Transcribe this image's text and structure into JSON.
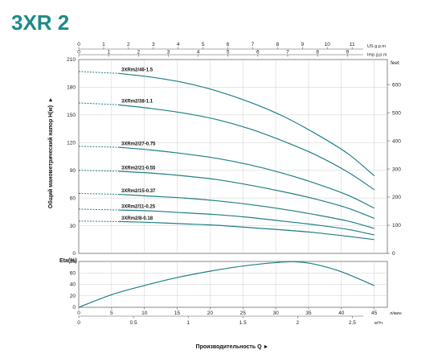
{
  "title": "3XR 2",
  "title_color": "#1f8a8a",
  "curve_color": "#1f7f86",
  "chart_data": {
    "type": "line",
    "head_panel": {
      "ylabel": "Общий манометрический напор H(м)",
      "ylim": [
        0,
        210
      ],
      "yticks": [
        0,
        30,
        60,
        90,
        120,
        150,
        180,
        210
      ],
      "xlim": [
        0,
        47
      ],
      "right_axis": {
        "label": "feet",
        "ticks": [
          0,
          100,
          200,
          300,
          400,
          500,
          600
        ]
      },
      "series": [
        {
          "name": "3XRm2/46-1.5",
          "dashed_to": 6,
          "x": [
            0,
            6,
            11,
            16,
            21,
            26,
            31,
            36,
            41,
            45
          ],
          "y": [
            197,
            195,
            191,
            185,
            176,
            164,
            149,
            130,
            108,
            84
          ]
        },
        {
          "name": "3XRm2/38-1.1",
          "dashed_to": 6,
          "x": [
            0,
            6,
            11,
            16,
            21,
            26,
            31,
            36,
            41,
            45
          ],
          "y": [
            163,
            161,
            157,
            152,
            145,
            135,
            122,
            107,
            88,
            69
          ]
        },
        {
          "name": "3XRm2/27-0.75",
          "dashed_to": 6,
          "x": [
            0,
            6,
            11,
            16,
            21,
            26,
            31,
            36,
            41,
            45
          ],
          "y": [
            116,
            115,
            112,
            108,
            103,
            96,
            87,
            76,
            63,
            49
          ]
        },
        {
          "name": "3XRm2/21-0.55",
          "dashed_to": 6,
          "x": [
            0,
            6,
            11,
            16,
            21,
            26,
            31,
            36,
            41,
            45
          ],
          "y": [
            90,
            89,
            87,
            84,
            80,
            74,
            67,
            59,
            49,
            38
          ]
        },
        {
          "name": "3XRm2/15-0.37",
          "dashed_to": 6,
          "x": [
            0,
            6,
            11,
            16,
            21,
            26,
            31,
            36,
            41,
            45
          ],
          "y": [
            65,
            64,
            62,
            60,
            57,
            53,
            48,
            42,
            35,
            27
          ]
        },
        {
          "name": "3XRm2/11-0.25",
          "dashed_to": 6,
          "x": [
            0,
            6,
            11,
            16,
            21,
            26,
            31,
            36,
            41,
            45
          ],
          "y": [
            48,
            47,
            46,
            44,
            42,
            39,
            35,
            31,
            26,
            20
          ]
        },
        {
          "name": "3XRm2/8-0.18",
          "dashed_to": 6,
          "x": [
            0,
            6,
            11,
            16,
            21,
            26,
            31,
            36,
            41,
            45
          ],
          "y": [
            35,
            34.5,
            33.5,
            32,
            30.5,
            28,
            25.5,
            22.5,
            18.5,
            15
          ]
        }
      ]
    },
    "eta_panel": {
      "ylabel": "Eta(%)",
      "ylim": [
        0,
        80
      ],
      "yticks": [
        0,
        20,
        40,
        60,
        80
      ],
      "x": [
        0,
        5,
        10,
        15,
        20,
        25,
        30,
        33,
        36,
        40,
        45
      ],
      "y": [
        0,
        22,
        38,
        52,
        63,
        72,
        78,
        79.5,
        75,
        62,
        38
      ]
    },
    "x_axis_lpm": {
      "unit": "л/мин",
      "ticks": [
        0,
        5,
        10,
        15,
        20,
        25,
        30,
        35,
        40,
        45
      ]
    },
    "x_axis_m3h": {
      "unit": "м³/ч",
      "ticks": [
        0,
        0.5,
        1,
        1.5,
        2,
        2.5
      ],
      "tick_labels": [
        "0",
        "0.5",
        "1",
        "1.5",
        "2",
        "2.5"
      ]
    },
    "x_axis_us_gpm": {
      "unit": "US g.p.m",
      "ticks": [
        0,
        1,
        2,
        3,
        4,
        5,
        6,
        7,
        8,
        9,
        10,
        11
      ]
    },
    "x_axis_imp_gpm": {
      "unit": "Imp.g.p.m",
      "ticks": [
        0,
        1,
        2,
        3,
        4,
        5,
        6,
        7,
        8,
        9
      ]
    },
    "xlabel": "Производительность Q ►"
  }
}
